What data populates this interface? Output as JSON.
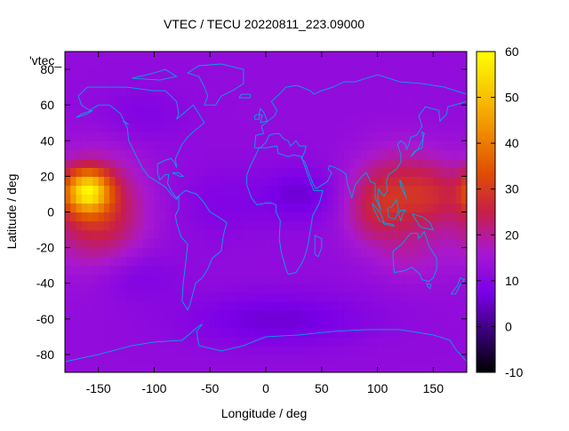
{
  "chart_data": {
    "type": "heatmap",
    "title": "VTEC / TECU 20220811_223.09000",
    "xlabel": "Longitude / deg",
    "ylabel": "Latitude / deg",
    "xlim": [
      -180,
      180
    ],
    "ylim": [
      -90,
      90
    ],
    "x_ticks": [
      -150,
      -100,
      -50,
      0,
      50,
      100,
      150
    ],
    "y_ticks": [
      -80,
      -60,
      -40,
      -20,
      0,
      20,
      40,
      60,
      80
    ],
    "colorbar": {
      "range": [
        -10,
        60
      ],
      "ticks": [
        -10,
        0,
        10,
        20,
        30,
        40,
        50,
        60
      ],
      "palette": [
        "#000000",
        "#3a0078",
        "#7a00e8",
        "#a818d0",
        "#c81e48",
        "#e05000",
        "#f08c00",
        "#f8c800",
        "#ffff00"
      ]
    },
    "legend_entry": "'vtec_",
    "coastline_color": "#00a6e0",
    "grid": false,
    "grid_resolution_deg": 5,
    "background_level_tecu": 12,
    "blobs": [
      {
        "lon": -160,
        "lat": 12,
        "rlon": 20,
        "rlat": 12,
        "amp": 34
      },
      {
        "lon": -150,
        "lat": 0,
        "rlon": 40,
        "rlat": 30,
        "amp": 16
      },
      {
        "lon": 120,
        "lat": 10,
        "rlon": 40,
        "rlat": 25,
        "amp": 14
      },
      {
        "lon": 150,
        "lat": 10,
        "rlon": 25,
        "rlat": 18,
        "amp": 6
      },
      {
        "lon": 95,
        "lat": 0,
        "rlon": 25,
        "rlat": 20,
        "amp": 6
      },
      {
        "lon": 30,
        "lat": 10,
        "rlon": 35,
        "rlat": 15,
        "amp": -6
      },
      {
        "lon": -40,
        "lat": 5,
        "rlon": 40,
        "rlat": 20,
        "amp": -3
      },
      {
        "lon": -120,
        "lat": -35,
        "rlon": 40,
        "rlat": 15,
        "amp": -4
      },
      {
        "lon": 10,
        "lat": -60,
        "rlon": 80,
        "rlat": 15,
        "amp": -6
      },
      {
        "lon": -110,
        "lat": 55,
        "rlon": 40,
        "rlat": 15,
        "amp": -3
      },
      {
        "lon": 130,
        "lat": -25,
        "rlon": 30,
        "rlat": 15,
        "amp": 4
      }
    ],
    "coastlines": [
      [
        [
          -168,
          65
        ],
        [
          -160,
          70
        ],
        [
          -140,
          70
        ],
        [
          -125,
          70
        ],
        [
          -100,
          68
        ],
        [
          -90,
          68
        ],
        [
          -80,
          62
        ],
        [
          -78,
          55
        ],
        [
          -80,
          52
        ],
        [
          -65,
          60
        ],
        [
          -60,
          55
        ],
        [
          -55,
          50
        ],
        [
          -65,
          45
        ],
        [
          -70,
          42
        ],
        [
          -75,
          38
        ],
        [
          -78,
          34
        ],
        [
          -81,
          30
        ],
        [
          -80,
          25
        ],
        [
          -82,
          28
        ],
        [
          -85,
          30
        ],
        [
          -90,
          29
        ],
        [
          -97,
          27
        ],
        [
          -97,
          22
        ],
        [
          -95,
          18
        ],
        [
          -90,
          21
        ],
        [
          -87,
          21
        ],
        [
          -88,
          16
        ],
        [
          -84,
          11
        ],
        [
          -80,
          8
        ],
        [
          -78,
          9
        ],
        [
          -80,
          7
        ],
        [
          -85,
          10
        ],
        [
          -90,
          14
        ],
        [
          -95,
          16
        ],
        [
          -105,
          20
        ],
        [
          -110,
          24
        ],
        [
          -115,
          30
        ],
        [
          -118,
          34
        ],
        [
          -123,
          40
        ],
        [
          -124,
          47
        ],
        [
          -130,
          55
        ],
        [
          -140,
          60
        ],
        [
          -150,
          60
        ],
        [
          -158,
          57
        ],
        [
          -165,
          60
        ],
        [
          -168,
          65
        ]
      ],
      [
        [
          -78,
          9
        ],
        [
          -72,
          12
        ],
        [
          -62,
          10
        ],
        [
          -55,
          5
        ],
        [
          -50,
          0
        ],
        [
          -42,
          -3
        ],
        [
          -35,
          -6
        ],
        [
          -38,
          -13
        ],
        [
          -40,
          -22
        ],
        [
          -48,
          -26
        ],
        [
          -52,
          -32
        ],
        [
          -57,
          -37
        ],
        [
          -63,
          -40
        ],
        [
          -65,
          -45
        ],
        [
          -68,
          -52
        ],
        [
          -70,
          -55
        ],
        [
          -75,
          -50
        ],
        [
          -74,
          -40
        ],
        [
          -72,
          -30
        ],
        [
          -70,
          -18
        ],
        [
          -76,
          -14
        ],
        [
          -80,
          -6
        ],
        [
          -81,
          -2
        ],
        [
          -78,
          2
        ],
        [
          -78,
          9
        ]
      ],
      [
        [
          -17,
          15
        ],
        [
          -17,
          21
        ],
        [
          -13,
          27
        ],
        [
          -9,
          32
        ],
        [
          -6,
          36
        ],
        [
          0,
          36
        ],
        [
          10,
          37
        ],
        [
          11,
          33
        ],
        [
          20,
          31
        ],
        [
          25,
          32
        ],
        [
          32,
          31
        ],
        [
          34,
          27
        ],
        [
          38,
          20
        ],
        [
          43,
          12
        ],
        [
          51,
          12
        ],
        [
          48,
          5
        ],
        [
          42,
          -2
        ],
        [
          40,
          -10
        ],
        [
          38,
          -18
        ],
        [
          35,
          -25
        ],
        [
          32,
          -29
        ],
        [
          27,
          -34
        ],
        [
          20,
          -35
        ],
        [
          18,
          -32
        ],
        [
          14,
          -23
        ],
        [
          12,
          -15
        ],
        [
          13,
          -5
        ],
        [
          9,
          0
        ],
        [
          9,
          4
        ],
        [
          5,
          5
        ],
        [
          0,
          5
        ],
        [
          -8,
          4
        ],
        [
          -13,
          8
        ],
        [
          -17,
          15
        ]
      ],
      [
        [
          -10,
          36
        ],
        [
          -9,
          43
        ],
        [
          -2,
          44
        ],
        [
          -4,
          48
        ],
        [
          2,
          51
        ],
        [
          8,
          54
        ],
        [
          10,
          57
        ],
        [
          5,
          62
        ],
        [
          12,
          66
        ],
        [
          18,
          70
        ],
        [
          28,
          71
        ],
        [
          40,
          68
        ],
        [
          43,
          66
        ],
        [
          50,
          68
        ],
        [
          60,
          70
        ],
        [
          70,
          73
        ],
        [
          80,
          73
        ],
        [
          100,
          77
        ],
        [
          120,
          73
        ],
        [
          140,
          72
        ],
        [
          160,
          70
        ],
        [
          170,
          68
        ],
        [
          180,
          66
        ]
      ],
      [
        [
          180,
          62
        ],
        [
          163,
          59
        ],
        [
          162,
          55
        ],
        [
          156,
          51
        ],
        [
          155,
          57
        ],
        [
          143,
          59
        ],
        [
          137,
          54
        ],
        [
          140,
          48
        ],
        [
          135,
          43
        ],
        [
          130,
          42
        ],
        [
          128,
          38
        ],
        [
          126,
          35
        ],
        [
          125,
          38
        ],
        [
          121,
          40
        ],
        [
          118,
          38
        ],
        [
          121,
          32
        ],
        [
          121,
          28
        ],
        [
          117,
          24
        ],
        [
          110,
          21
        ],
        [
          108,
          17
        ],
        [
          109,
          12
        ],
        [
          106,
          9
        ],
        [
          104,
          10
        ],
        [
          101,
          13
        ],
        [
          100,
          8
        ],
        [
          103,
          1
        ],
        [
          98,
          8
        ],
        [
          98,
          16
        ],
        [
          94,
          17
        ],
        [
          90,
          22
        ],
        [
          86,
          20
        ],
        [
          80,
          15
        ],
        [
          77,
          8
        ],
        [
          73,
          16
        ],
        [
          72,
          21
        ],
        [
          68,
          23
        ],
        [
          62,
          25
        ],
        [
          57,
          26
        ],
        [
          56,
          24
        ],
        [
          59,
          22
        ],
        [
          55,
          17
        ],
        [
          45,
          13
        ],
        [
          43,
          15
        ],
        [
          39,
          21
        ],
        [
          35,
          28
        ],
        [
          32,
          30
        ],
        [
          35,
          34
        ],
        [
          36,
          37
        ],
        [
          30,
          37
        ],
        [
          27,
          40
        ],
        [
          24,
          38
        ],
        [
          22,
          37
        ],
        [
          20,
          40
        ],
        [
          16,
          41
        ],
        [
          12,
          44
        ],
        [
          10,
          44
        ],
        [
          8,
          44
        ],
        [
          3,
          43
        ],
        [
          0,
          39
        ],
        [
          -5,
          36
        ],
        [
          -10,
          36
        ]
      ],
      [
        [
          115,
          -34
        ],
        [
          114,
          -26
        ],
        [
          114,
          -22
        ],
        [
          122,
          -18
        ],
        [
          127,
          -14
        ],
        [
          130,
          -12
        ],
        [
          136,
          -12
        ],
        [
          137,
          -15
        ],
        [
          142,
          -11
        ],
        [
          146,
          -19
        ],
        [
          153,
          -26
        ],
        [
          153,
          -32
        ],
        [
          150,
          -37
        ],
        [
          146,
          -39
        ],
        [
          140,
          -38
        ],
        [
          138,
          -35
        ],
        [
          131,
          -31
        ],
        [
          124,
          -33
        ],
        [
          115,
          -34
        ]
      ],
      [
        [
          -180,
          -84
        ],
        [
          -150,
          -80
        ],
        [
          -120,
          -75
        ],
        [
          -100,
          -73
        ],
        [
          -75,
          -72
        ],
        [
          -60,
          -64
        ],
        [
          -57,
          -63
        ],
        [
          -62,
          -67
        ],
        [
          -60,
          -75
        ],
        [
          -40,
          -78
        ],
        [
          -20,
          -75
        ],
        [
          0,
          -70
        ],
        [
          30,
          -69
        ],
        [
          60,
          -67
        ],
        [
          90,
          -66
        ],
        [
          120,
          -66
        ],
        [
          150,
          -69
        ],
        [
          165,
          -72
        ],
        [
          170,
          -77
        ],
        [
          180,
          -84
        ]
      ],
      [
        [
          -55,
          60
        ],
        [
          -45,
          60
        ],
        [
          -40,
          65
        ],
        [
          -30,
          68
        ],
        [
          -20,
          72
        ],
        [
          -20,
          80
        ],
        [
          -40,
          83
        ],
        [
          -60,
          82
        ],
        [
          -70,
          78
        ],
        [
          -60,
          76
        ],
        [
          -55,
          70
        ],
        [
          -52,
          65
        ],
        [
          -55,
          60
        ]
      ],
      [
        [
          -5,
          50
        ],
        [
          1,
          51
        ],
        [
          0,
          53
        ],
        [
          -2,
          56
        ],
        [
          -5,
          58
        ],
        [
          -6,
          55
        ],
        [
          -3,
          54
        ],
        [
          -5,
          50
        ]
      ],
      [
        [
          -10,
          52
        ],
        [
          -6,
          52
        ],
        [
          -6,
          55
        ],
        [
          -10,
          54
        ],
        [
          -10,
          52
        ]
      ],
      [
        [
          -24,
          64
        ],
        [
          -14,
          64
        ],
        [
          -14,
          66
        ],
        [
          -22,
          66
        ],
        [
          -24,
          64
        ]
      ],
      [
        [
          130,
          31
        ],
        [
          133,
          34
        ],
        [
          140,
          36
        ],
        [
          141,
          41
        ],
        [
          140,
          45
        ],
        [
          142,
          44
        ],
        [
          140,
          40
        ],
        [
          136,
          35
        ],
        [
          130,
          31
        ]
      ],
      [
        [
          95,
          5
        ],
        [
          98,
          3
        ],
        [
          103,
          -1
        ],
        [
          106,
          -6
        ],
        [
          102,
          -5
        ],
        [
          98,
          0
        ],
        [
          95,
          5
        ]
      ],
      [
        [
          105,
          -6
        ],
        [
          114,
          -7
        ],
        [
          115,
          -8
        ],
        [
          106,
          -7
        ],
        [
          105,
          -6
        ]
      ],
      [
        [
          109,
          2
        ],
        [
          110,
          -3
        ],
        [
          116,
          -4
        ],
        [
          119,
          1
        ],
        [
          117,
          7
        ],
        [
          113,
          3
        ],
        [
          109,
          2
        ]
      ],
      [
        [
          119,
          -1
        ],
        [
          121,
          1
        ],
        [
          125,
          1
        ],
        [
          122,
          -2
        ],
        [
          121,
          -5
        ],
        [
          119,
          -1
        ]
      ],
      [
        [
          131,
          -1
        ],
        [
          141,
          -3
        ],
        [
          147,
          -6
        ],
        [
          150,
          -10
        ],
        [
          141,
          -9
        ],
        [
          138,
          -8
        ],
        [
          134,
          -4
        ],
        [
          131,
          -1
        ]
      ],
      [
        [
          120,
          18
        ],
        [
          122,
          16
        ],
        [
          124,
          12
        ],
        [
          126,
          7
        ],
        [
          125,
          9
        ],
        [
          121,
          14
        ],
        [
          120,
          18
        ]
      ],
      [
        [
          44,
          -13
        ],
        [
          50,
          -15
        ],
        [
          50,
          -20
        ],
        [
          47,
          -25
        ],
        [
          44,
          -24
        ],
        [
          44,
          -13
        ]
      ],
      [
        [
          166,
          -46
        ],
        [
          172,
          -41
        ],
        [
          174,
          -37
        ],
        [
          178,
          -38
        ],
        [
          174,
          -41
        ],
        [
          170,
          -46
        ],
        [
          166,
          -46
        ]
      ],
      [
        [
          -84,
          22
        ],
        [
          -77,
          20
        ],
        [
          -74,
          20
        ],
        [
          -78,
          22
        ],
        [
          -84,
          22
        ]
      ],
      [
        [
          -125,
          50
        ],
        [
          -128,
          51
        ],
        [
          -123,
          49
        ],
        [
          -125,
          50
        ]
      ],
      [
        [
          144,
          -40
        ],
        [
          148,
          -41
        ],
        [
          147,
          -43
        ],
        [
          145,
          -42
        ],
        [
          144,
          -40
        ]
      ],
      [
        [
          -170,
          53
        ],
        [
          -160,
          55
        ],
        [
          -155,
          57
        ],
        [
          -165,
          55
        ],
        [
          -170,
          53
        ]
      ],
      [
        [
          -120,
          75
        ],
        [
          -100,
          78
        ],
        [
          -90,
          80
        ],
        [
          -80,
          76
        ],
        [
          -95,
          74
        ],
        [
          -120,
          75
        ]
      ]
    ]
  }
}
